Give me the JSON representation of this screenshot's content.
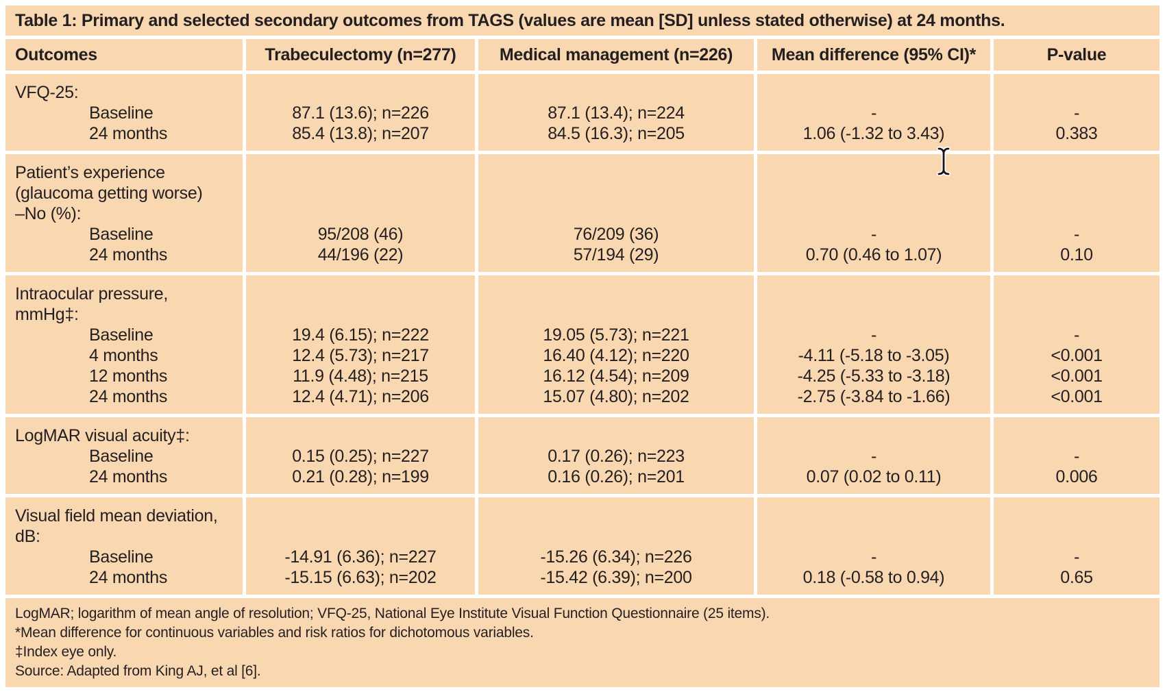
{
  "title": "Table 1: Primary and selected secondary outcomes from TAGS (values are mean [SD] unless stated otherwise) at 24 months.",
  "colors": {
    "table_background": "#f8d7b1",
    "text": "#231f20",
    "divider": "#ffffff"
  },
  "cursor_icon": "text-ibeam-cursor",
  "table": {
    "columns": [
      "Outcomes",
      "Trabeculectomy (n=277)",
      "Medical management (n=226)",
      "Mean difference (95% CI)*",
      "P-value"
    ],
    "sections": [
      {
        "label_lines": [
          "VFQ-25:"
        ],
        "rows": [
          {
            "time": "Baseline",
            "trab": "87.1 (13.6); n=226",
            "med": "87.1 (13.4); n=224",
            "diff": "-",
            "p": "-"
          },
          {
            "time": "24 months",
            "trab": "85.4 (13.8); n=207",
            "med": "84.5 (16.3); n=205",
            "diff": "1.06 (-1.32 to 3.43)",
            "p": "0.383"
          }
        ]
      },
      {
        "label_lines": [
          "Patient’s experience",
          "(glaucoma getting worse)",
          "–No (%):"
        ],
        "rows": [
          {
            "time": "Baseline",
            "trab": "95/208 (46)",
            "med": "76/209 (36)",
            "diff": "-",
            "p": "-"
          },
          {
            "time": "24 months",
            "trab": "44/196 (22)",
            "med": "57/194 (29)",
            "diff": "0.70 (0.46 to 1.07)",
            "p": "0.10"
          }
        ]
      },
      {
        "label_lines": [
          "Intraocular pressure,",
          "mmHg‡:"
        ],
        "rows": [
          {
            "time": "Baseline",
            "trab": "19.4 (6.15); n=222",
            "med": "19.05 (5.73); n=221",
            "diff": "-",
            "p": "-"
          },
          {
            "time": "4 months",
            "trab": "12.4 (5.73); n=217",
            "med": "16.40 (4.12); n=220",
            "diff": "-4.11 (-5.18 to -3.05)",
            "p": "<0.001"
          },
          {
            "time": "12 months",
            "trab": "11.9 (4.48); n=215",
            "med": "16.12 (4.54); n=209",
            "diff": "-4.25 (-5.33 to -3.18)",
            "p": "<0.001"
          },
          {
            "time": "24 months",
            "trab": "12.4 (4.71); n=206",
            "med": "15.07 (4.80); n=202",
            "diff": "-2.75 (-3.84 to -1.66)",
            "p": "<0.001"
          }
        ]
      },
      {
        "label_lines": [
          "LogMAR visual acuity‡:"
        ],
        "rows": [
          {
            "time": "Baseline",
            "trab": "0.15 (0.25); n=227",
            "med": "0.17 (0.26); n=223",
            "diff": "-",
            "p": "-"
          },
          {
            "time": "24 months",
            "trab": "0.21 (0.28); n=199",
            "med": "0.16 (0.26); n=201",
            "diff": "0.07 (0.02 to 0.11)",
            "p": "0.006"
          }
        ]
      },
      {
        "label_lines": [
          "Visual field mean deviation,",
          "dB:"
        ],
        "rows": [
          {
            "time": "Baseline",
            "trab": "-14.91 (6.36); n=227",
            "med": "-15.26 (6.34); n=226",
            "diff": "-",
            "p": "-"
          },
          {
            "time": "24 months",
            "trab": "-15.15 (6.63); n=202",
            "med": "-15.42 (6.39); n=200",
            "diff": "0.18 (-0.58 to 0.94)",
            "p": "0.65"
          }
        ]
      }
    ]
  },
  "footnotes": [
    "LogMAR; logarithm of mean angle of resolution; VFQ-25, National Eye Institute Visual Function Questionnaire (25 items).",
    "*Mean difference for continuous variables and risk ratios for dichotomous variables.",
    "‡Index eye only.",
    "Source: Adapted from King AJ, et al [6]."
  ]
}
